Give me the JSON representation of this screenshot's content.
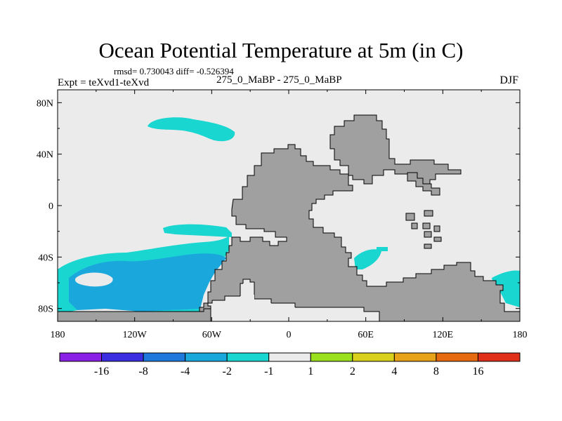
{
  "title": "Ocean Potential Temperature at 5m (in C)",
  "stats": "rmsd= 0.730043 diff= -0.526394",
  "experiment": "Expt = teXvd1-teXvd",
  "runs": "275_0_MaBP - 275_0_MaBP",
  "season": "DJF",
  "chart_data": {
    "type": "heatmap",
    "title": "Ocean Potential Temperature at 5m (in C)",
    "variable": "Ocean Potential Temperature at 5m",
    "units": "C",
    "rmsd": 0.730043,
    "diff": -0.526394,
    "xlim": [
      -180,
      180
    ],
    "ylim": [
      -90,
      90
    ],
    "x_ticks": [
      -180,
      -120,
      -60,
      0,
      60,
      120,
      180
    ],
    "x_tick_labels": [
      "180",
      "120W",
      "60W",
      "0",
      "60E",
      "120E",
      "180"
    ],
    "y_ticks": [
      80,
      40,
      0,
      -40,
      -80
    ],
    "y_tick_labels": [
      "80N",
      "40N",
      "0",
      "40S",
      "80S"
    ],
    "colorbar": {
      "bins": [
        "<-16",
        "-16 to -8",
        "-8 to -4",
        "-4 to -2",
        "-2 to -1",
        "-1 to 1",
        "1 to 2",
        "2 to 4",
        "4 to 8",
        "8 to 16",
        ">16"
      ],
      "colors": [
        "#8a1fe6",
        "#3a2ee0",
        "#1f78dc",
        "#1aa8dc",
        "#19d6d0",
        "#ebebeb",
        "#9be01e",
        "#d8d01c",
        "#e8a21a",
        "#e66a10",
        "#e0301a"
      ],
      "labels": [
        "-16",
        "-8",
        "-4",
        "-2",
        "-1",
        "1",
        "2",
        "4",
        "8",
        "16"
      ]
    },
    "land_color": "#a0a0a0",
    "ocean_background_color": "#ebebeb",
    "anomaly_regions": [
      {
        "name": "North Pacific patch",
        "bin": "-2 to -1"
      },
      {
        "name": "South Pacific band",
        "bin": "-2 to -1"
      },
      {
        "name": "South Pacific core",
        "bin": "-4 to -2"
      },
      {
        "name": "South Indian patch",
        "bin": "-2 to -1"
      },
      {
        "name": "Southeast Pacific edge",
        "bin": "-2 to -1"
      }
    ]
  }
}
